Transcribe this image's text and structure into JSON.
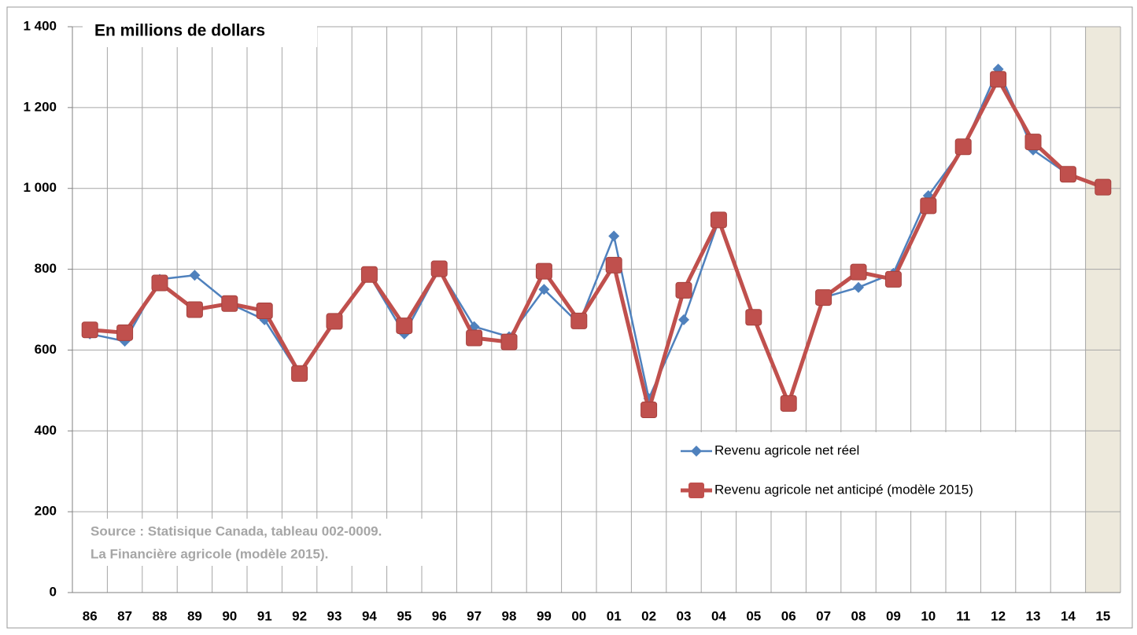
{
  "chart_data": {
    "type": "line",
    "title": "En millions de dollars",
    "annotations": [
      "Source : Statisique Canada, tableau 002-0009.",
      "La Financière agricole (modèle 2015)."
    ],
    "categories": [
      "86",
      "87",
      "88",
      "89",
      "90",
      "91",
      "92",
      "93",
      "94",
      "95",
      "96",
      "97",
      "98",
      "99",
      "00",
      "01",
      "02",
      "03",
      "04",
      "05",
      "06",
      "07",
      "08",
      "09",
      "10",
      "11",
      "12",
      "13",
      "14",
      "15"
    ],
    "series": [
      {
        "name": "Revenu agricole net réel",
        "color": "#4f81bd",
        "marker": "diamond",
        "values": [
          640,
          622,
          775,
          785,
          715,
          675,
          540,
          670,
          785,
          640,
          800,
          658,
          633,
          750,
          665,
          882,
          480,
          675,
          920,
          680,
          468,
          730,
          755,
          790,
          982,
          1100,
          1295,
          1095,
          1035,
          null
        ]
      },
      {
        "name": "Revenu agricole net anticipé (modèle 2015)",
        "color": "#c0504d",
        "marker": "square",
        "values": [
          650,
          643,
          766,
          700,
          715,
          697,
          542,
          671,
          787,
          660,
          801,
          630,
          620,
          795,
          672,
          810,
          452,
          748,
          922,
          681,
          468,
          730,
          793,
          775,
          957,
          1103,
          1270,
          1115,
          1035,
          1003
        ]
      }
    ],
    "ylim": [
      0,
      1400
    ],
    "yticks": [
      0,
      200,
      400,
      600,
      800,
      {
        "value": 1000,
        "label": "1 000"
      },
      {
        "value": 1200,
        "label": "1 200"
      },
      {
        "value": 1400,
        "label": "1 400"
      }
    ],
    "grid": true,
    "highlight_category": "15",
    "highlight_color": "#ede9dc"
  }
}
